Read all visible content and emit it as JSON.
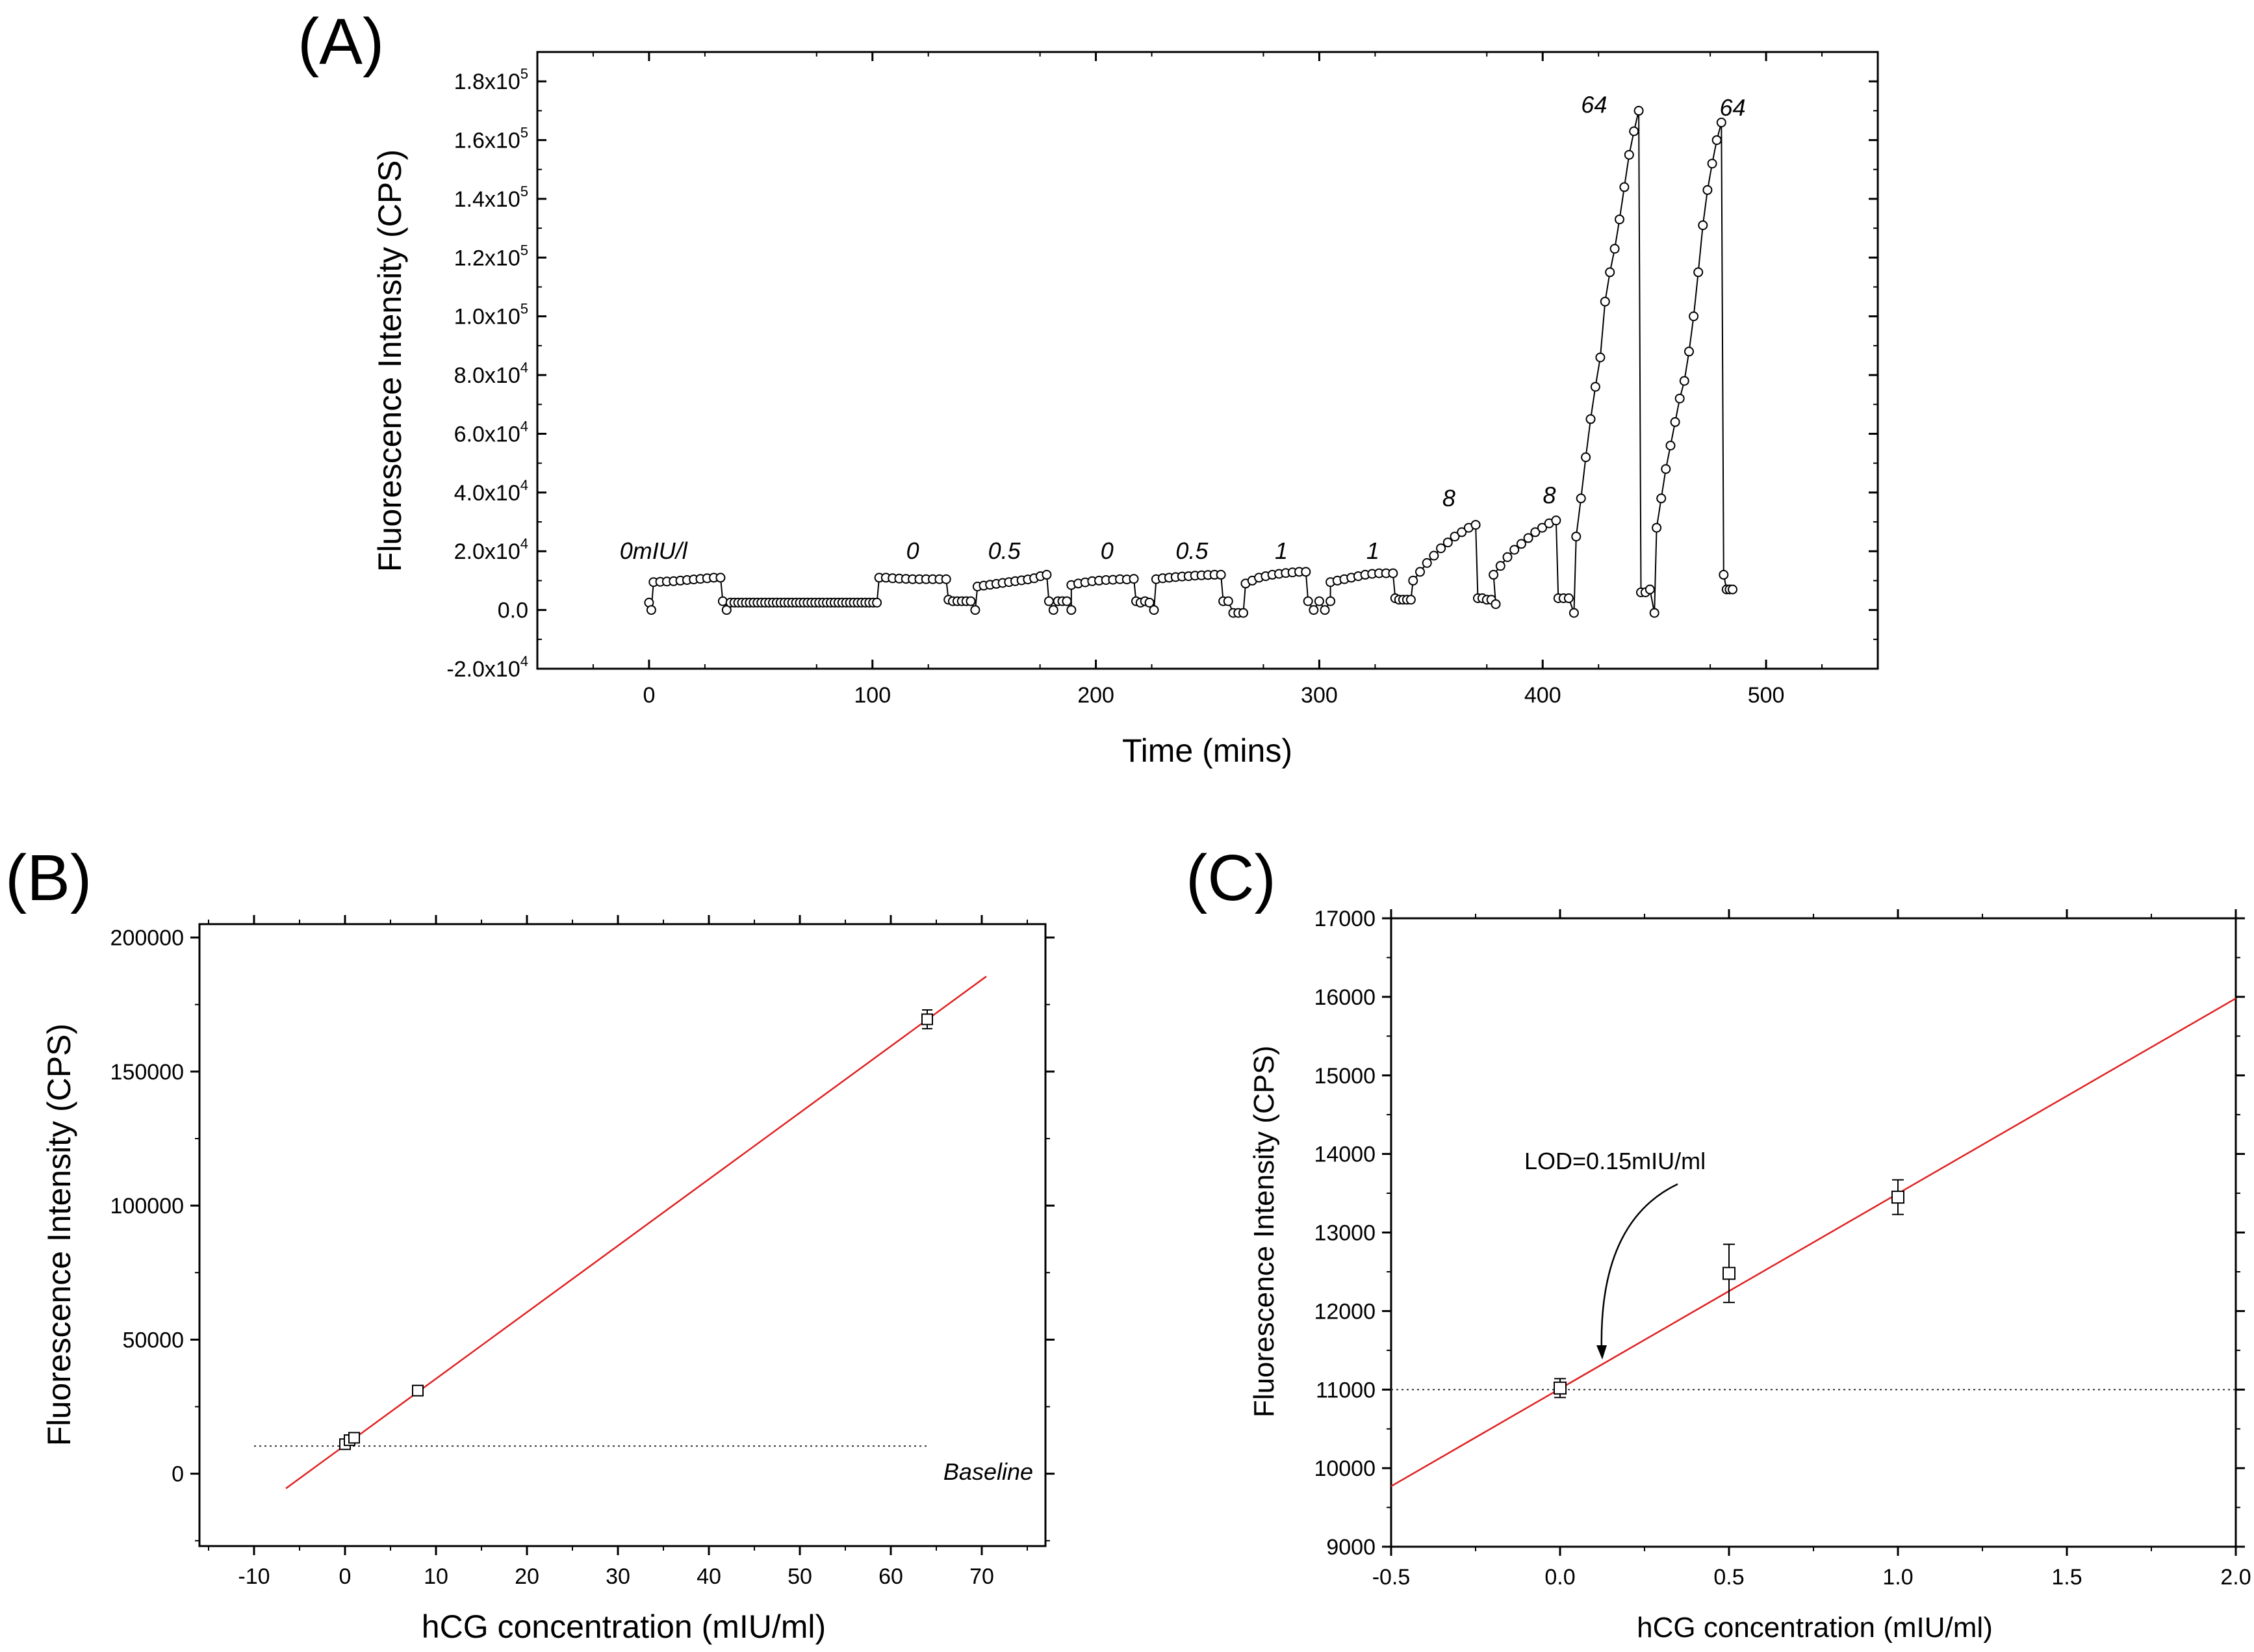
{
  "chart_data": [
    {
      "panel": "(A)",
      "type": "line",
      "title": "",
      "xlabel": "Time (mins)",
      "ylabel": "Fluorescence Intensity (CPS)",
      "xlim": [
        -50,
        550
      ],
      "ylim": [
        -20000,
        190000
      ],
      "grid": false,
      "marker": "open-circle",
      "x_ticks": [
        {
          "value": 0,
          "label": "0"
        },
        {
          "value": 100,
          "label": "100"
        },
        {
          "value": 200,
          "label": "200"
        },
        {
          "value": 300,
          "label": "300"
        },
        {
          "value": 400,
          "label": "400"
        },
        {
          "value": 500,
          "label": "500"
        }
      ],
      "y_ticks": [
        {
          "value": -20000,
          "mantissa": "-2.0x10",
          "exp": "4"
        },
        {
          "value": 0,
          "mantissa": "0.0",
          "exp": ""
        },
        {
          "value": 20000,
          "mantissa": "2.0x10",
          "exp": "4"
        },
        {
          "value": 40000,
          "mantissa": "4.0x10",
          "exp": "4"
        },
        {
          "value": 60000,
          "mantissa": "6.0x10",
          "exp": "4"
        },
        {
          "value": 80000,
          "mantissa": "8.0x10",
          "exp": "4"
        },
        {
          "value": 100000,
          "mantissa": "1.0x10",
          "exp": "5"
        },
        {
          "value": 120000,
          "mantissa": "1.2x10",
          "exp": "5"
        },
        {
          "value": 140000,
          "mantissa": "1.4x10",
          "exp": "5"
        },
        {
          "value": 160000,
          "mantissa": "1.6x10",
          "exp": "5"
        },
        {
          "value": 180000,
          "mantissa": "1.8x10",
          "exp": "5"
        }
      ],
      "segments": [
        {
          "x0": 0,
          "x1": 1,
          "values": [
            2500,
            0
          ]
        },
        {
          "x0": 2,
          "x1": 32,
          "values": [
            9500,
            9600,
            9700,
            9800,
            10000,
            10200,
            10400,
            10600,
            10800,
            11000,
            11000
          ]
        },
        {
          "x0": 33,
          "x1": 102,
          "values": [
            3000,
            0,
            2500,
            2500,
            2500,
            2500,
            2500,
            2500,
            2500,
            2500,
            2500,
            2500,
            2500,
            2500,
            2500,
            2500,
            2500,
            2500,
            2500,
            2500,
            2500,
            2500,
            2500,
            2500,
            2500,
            2500,
            2500,
            2500,
            2500,
            2500,
            2500,
            2500,
            2500,
            2500,
            2500,
            2500,
            2500,
            2500,
            2500,
            2500,
            2500
          ]
        },
        {
          "x0": 103,
          "x1": 133,
          "values": [
            11000,
            11000,
            10800,
            10700,
            10600,
            10500,
            10500,
            10500,
            10500,
            10500,
            10500
          ]
        },
        {
          "x0": 134,
          "x1": 146,
          "values": [
            3500,
            3000,
            3000,
            3000,
            3000,
            3000,
            0
          ]
        },
        {
          "x0": 147,
          "x1": 178,
          "values": [
            8000,
            8300,
            8600,
            8900,
            9200,
            9500,
            9800,
            10100,
            10400,
            10800,
            11500,
            12000
          ]
        },
        {
          "x0": 179,
          "x1": 189,
          "values": [
            3000,
            0,
            3000,
            3000,
            3000,
            0
          ]
        },
        {
          "x0": 189,
          "x1": 217,
          "values": [
            8500,
            9000,
            9400,
            9800,
            10000,
            10200,
            10300,
            10500,
            10400,
            10600
          ]
        },
        {
          "x0": 218,
          "x1": 226,
          "values": [
            3000,
            2500,
            3000,
            2500,
            0
          ]
        },
        {
          "x0": 227,
          "x1": 256,
          "values": [
            10500,
            10800,
            11000,
            11200,
            11400,
            11500,
            11700,
            11800,
            11900,
            12000,
            12000
          ]
        },
        {
          "x0": 257,
          "x1": 266,
          "values": [
            3000,
            3000,
            -1000,
            -1000,
            -1000
          ]
        },
        {
          "x0": 267,
          "x1": 294,
          "values": [
            9000,
            10000,
            11000,
            11500,
            12000,
            12300,
            12600,
            12800,
            13000,
            13000
          ]
        },
        {
          "x0": 295,
          "x1": 305,
          "values": [
            3000,
            0,
            3000,
            0,
            3000
          ]
        },
        {
          "x0": 305,
          "x1": 333,
          "values": [
            9500,
            10000,
            10500,
            11000,
            11500,
            12000,
            12300,
            12500,
            12500,
            12500
          ]
        },
        {
          "x0": 334,
          "x1": 341,
          "values": [
            4000,
            3500,
            3500,
            3500,
            3500
          ]
        },
        {
          "x0": 342,
          "x1": 370,
          "values": [
            10000,
            13000,
            16000,
            18500,
            21000,
            23000,
            25000,
            26500,
            28000,
            29000
          ]
        },
        {
          "x0": 371,
          "x1": 379,
          "values": [
            4000,
            4000,
            3500,
            3500,
            2000
          ]
        },
        {
          "x0": 378,
          "x1": 406,
          "values": [
            12000,
            15000,
            18000,
            20500,
            22500,
            24500,
            26500,
            28000,
            29500,
            30500
          ]
        },
        {
          "x0": 407,
          "x1": 414,
          "values": [
            4000,
            4000,
            4000,
            -1000
          ]
        },
        {
          "x0": 415,
          "x1": 443,
          "values": [
            25000,
            38000,
            52000,
            65000,
            76000,
            86000,
            105000,
            115000,
            123000,
            133000,
            144000,
            155000,
            163000,
            170000
          ]
        },
        {
          "x0": 444,
          "x1": 450,
          "values": [
            6000,
            6000,
            7000,
            -1000
          ]
        },
        {
          "x0": 451,
          "x1": 480,
          "values": [
            28000,
            38000,
            48000,
            56000,
            64000,
            72000,
            78000,
            88000,
            100000,
            115000,
            131000,
            143000,
            152000,
            160000,
            166000
          ]
        },
        {
          "x0": 481,
          "x1": 485,
          "values": [
            12000,
            7000,
            7000,
            7000
          ]
        }
      ],
      "annotations": [
        {
          "text": "0mIU/l",
          "x": 2,
          "y": 20000
        },
        {
          "text": "0",
          "x": 118,
          "y": 20000
        },
        {
          "text": "0.5",
          "x": 159,
          "y": 20000
        },
        {
          "text": "0",
          "x": 205,
          "y": 20000
        },
        {
          "text": "0.5",
          "x": 243,
          "y": 20000
        },
        {
          "text": "1",
          "x": 283,
          "y": 20000
        },
        {
          "text": "1",
          "x": 324,
          "y": 20000
        },
        {
          "text": "8",
          "x": 358,
          "y": 38000
        },
        {
          "text": "8",
          "x": 403,
          "y": 39000
        },
        {
          "text": "64",
          "x": 423,
          "y": 172000
        },
        {
          "text": "64",
          "x": 485,
          "y": 171000
        }
      ]
    },
    {
      "panel": "(B)",
      "type": "scatter",
      "xlabel": "hCG concentration (mIU/ml)",
      "ylabel": "Fluorescence Intensity (CPS)",
      "xlim": [
        -16,
        77
      ],
      "ylim": [
        -27000,
        205000
      ],
      "grid": false,
      "marker": "open-square",
      "x_ticks": [
        -10,
        0,
        10,
        20,
        30,
        40,
        50,
        60,
        70
      ],
      "y_ticks": [
        0,
        50000,
        100000,
        150000,
        200000
      ],
      "points": [
        {
          "x": 0,
          "y": 11000,
          "err": 1200
        },
        {
          "x": 0.5,
          "y": 12500,
          "err": 1300
        },
        {
          "x": 1,
          "y": 13400,
          "err": 1100
        },
        {
          "x": 8,
          "y": 31000,
          "err": 1200
        },
        {
          "x": 64,
          "y": 169500,
          "err": 3500
        }
      ],
      "fit_line": {
        "color": "#e02020",
        "x": [
          -6.5,
          70.5
        ],
        "y": [
          -5500,
          185500
        ]
      },
      "baseline": {
        "y": 10300,
        "x": [
          -10,
          64
        ],
        "label": "Baseline"
      }
    },
    {
      "panel": "(C)",
      "type": "scatter",
      "xlabel": "hCG concentration (mIU/ml)",
      "ylabel": "Fluorescence Intensity (CPS)",
      "xlim": [
        -0.5,
        2.0
      ],
      "ylim": [
        9000,
        17000
      ],
      "grid": false,
      "marker": "open-square",
      "x_ticks": [
        {
          "value": -0.5,
          "label": "-0.5"
        },
        {
          "value": 0.0,
          "label": "0.0"
        },
        {
          "value": 0.5,
          "label": "0.5"
        },
        {
          "value": 1.0,
          "label": "1.0"
        },
        {
          "value": 1.5,
          "label": "1.5"
        },
        {
          "value": 2.0,
          "label": "2.0"
        }
      ],
      "y_ticks": [
        9000,
        10000,
        11000,
        12000,
        13000,
        14000,
        15000,
        16000,
        17000
      ],
      "points": [
        {
          "x": 0,
          "y": 11020,
          "err": 120
        },
        {
          "x": 0.5,
          "y": 12480,
          "err": 370
        },
        {
          "x": 1.0,
          "y": 13450,
          "err": 220
        }
      ],
      "fit_line": {
        "color": "#e02020",
        "x": [
          -0.5,
          2.0
        ],
        "y": [
          9770,
          15980
        ]
      },
      "baseline": {
        "y": 11000,
        "x": [
          -0.5,
          2.0
        ]
      },
      "annotation": {
        "text": "LOD=0.15mIU/ml"
      }
    }
  ]
}
